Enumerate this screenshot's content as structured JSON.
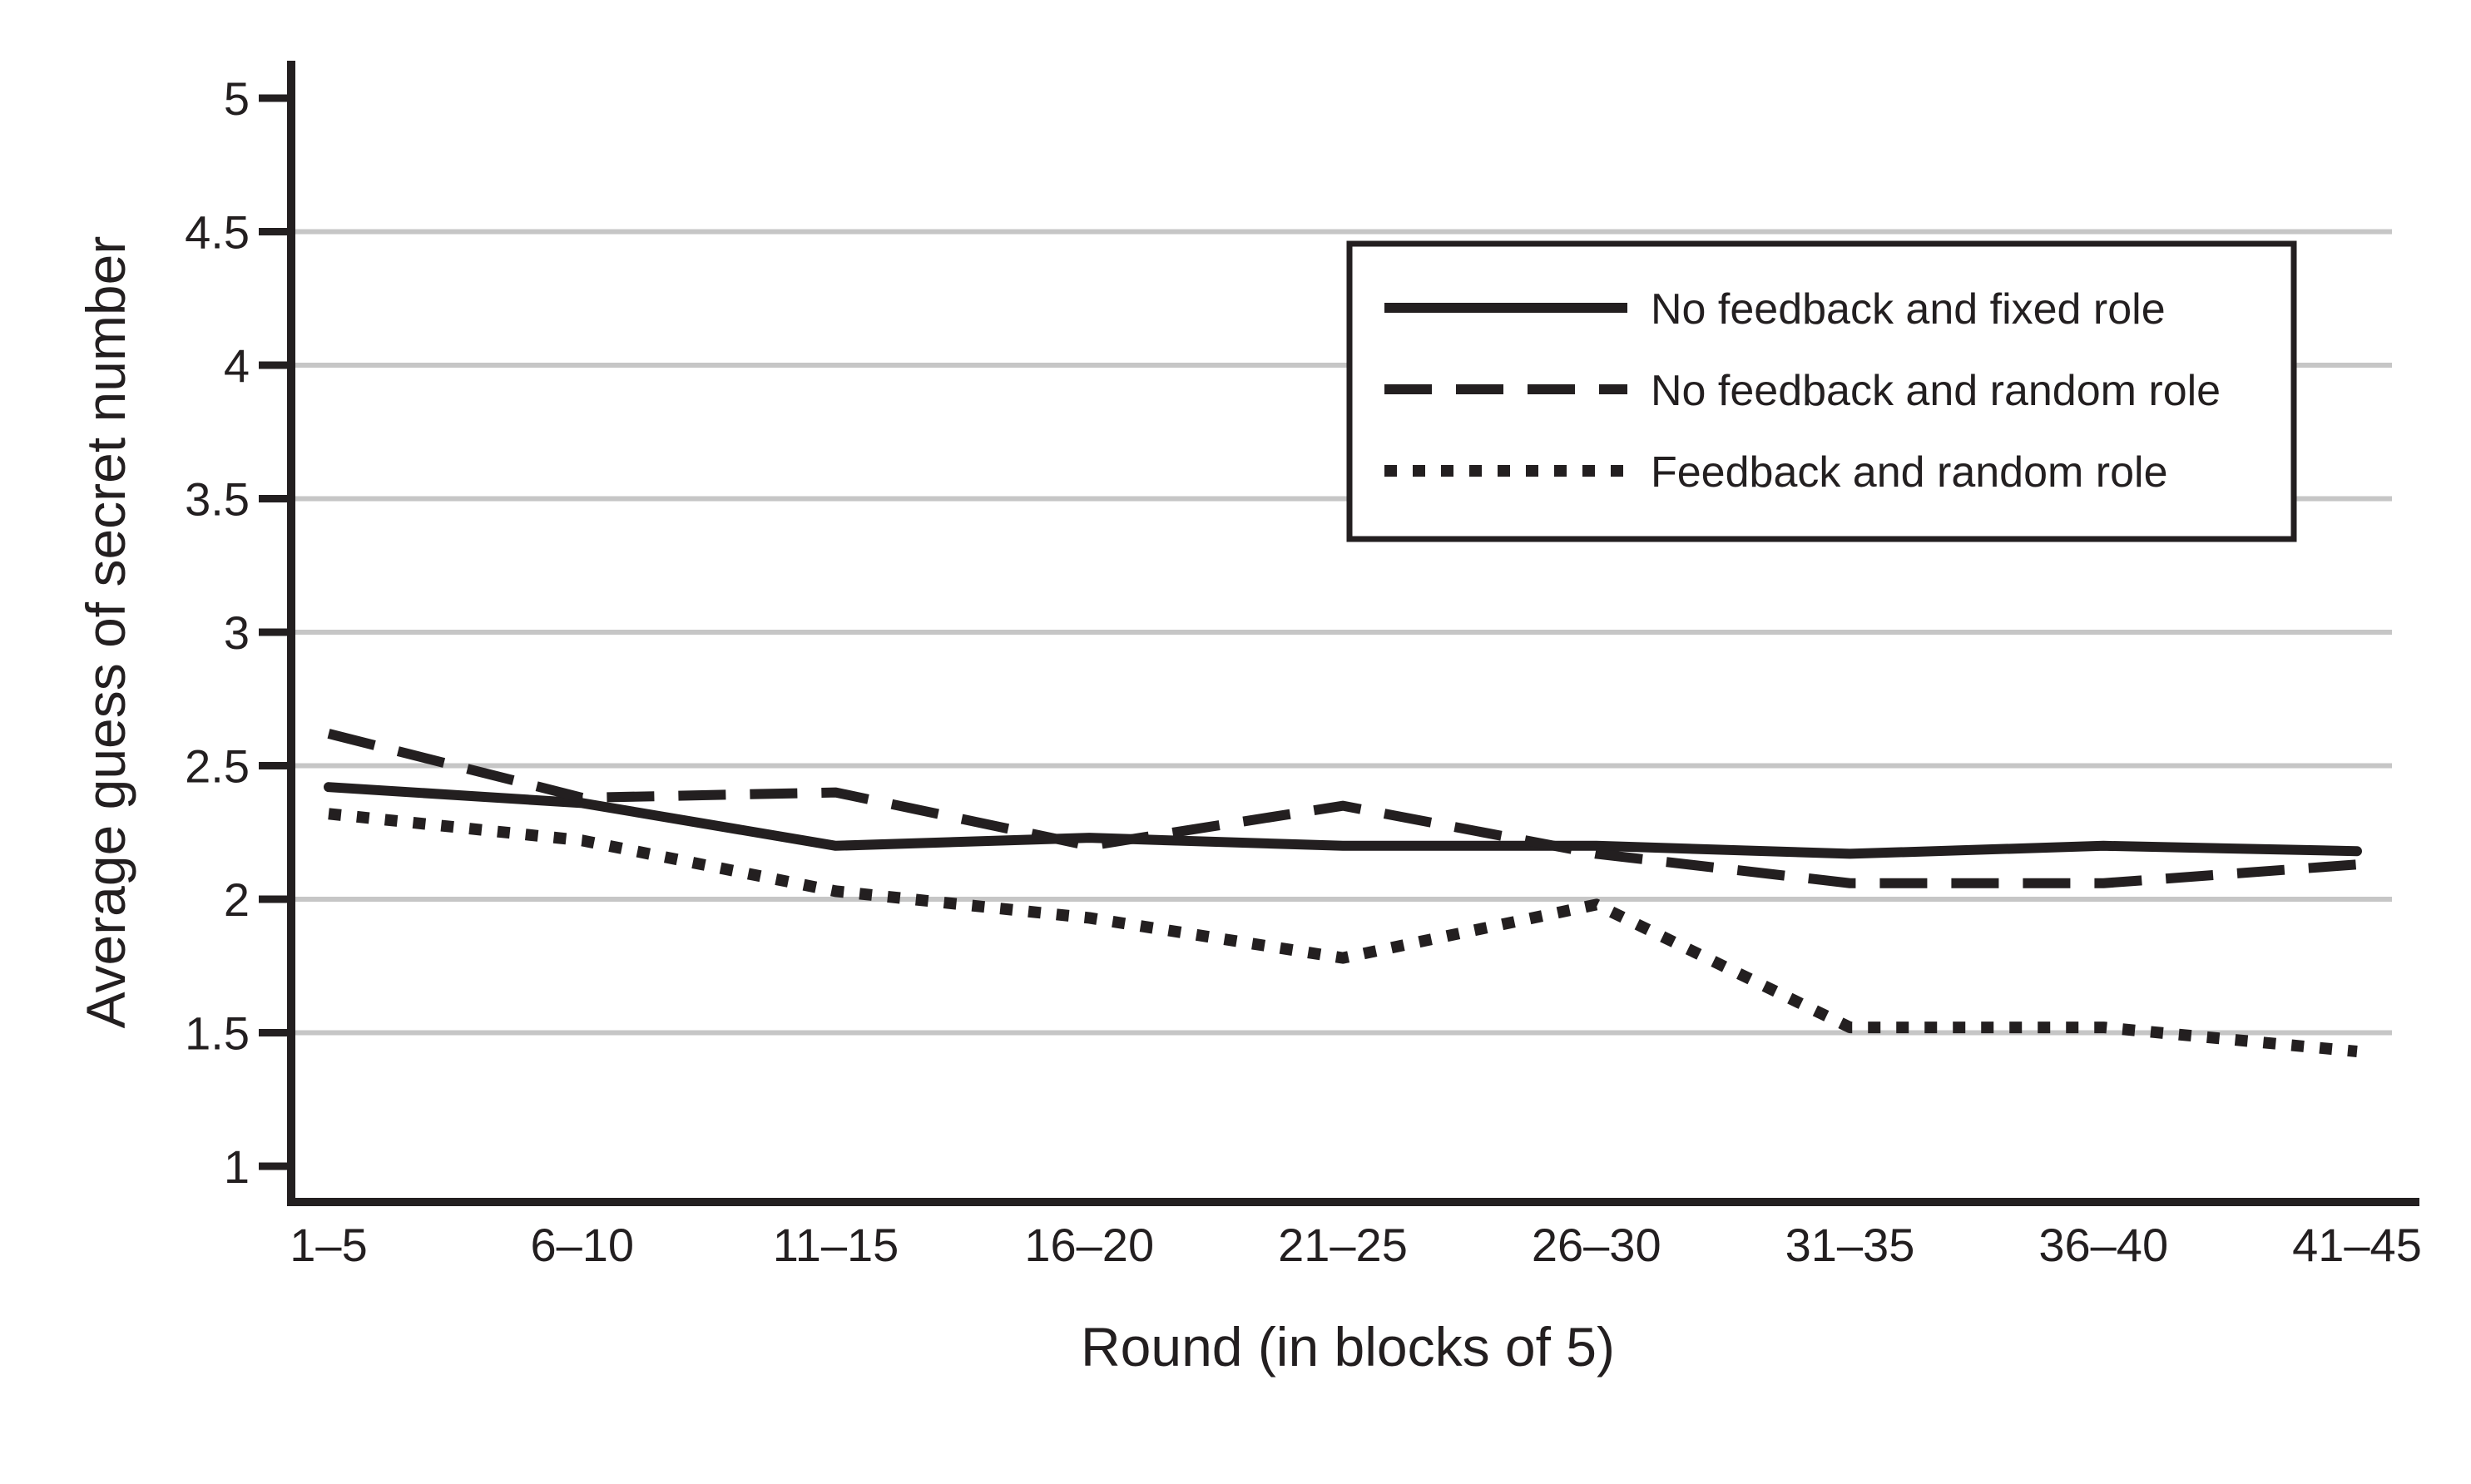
{
  "chart_data": {
    "type": "line",
    "title": "",
    "xlabel": "Round (in blocks of 5)",
    "ylabel": "Average guess of secret number",
    "categories": [
      "1–5",
      "6–10",
      "11–15",
      "16–20",
      "21–25",
      "26–30",
      "31–35",
      "36–40",
      "41–45"
    ],
    "series": [
      {
        "name": "No feedback and fixed role",
        "line_style": "solid",
        "values": [
          2.42,
          2.36,
          2.2,
          2.23,
          2.2,
          2.2,
          2.17,
          2.2,
          2.18
        ]
      },
      {
        "name": "No feedback and random role",
        "line_style": "long-dash",
        "values": [
          2.62,
          2.38,
          2.4,
          2.2,
          2.35,
          2.17,
          2.06,
          2.06,
          2.13
        ]
      },
      {
        "name": "Feedback and random role",
        "line_style": "dotted",
        "values": [
          2.32,
          2.22,
          2.03,
          1.93,
          1.78,
          1.98,
          1.52,
          1.52,
          1.43
        ]
      }
    ],
    "ylim": [
      1,
      5
    ],
    "yticks": [
      5,
      4.5,
      4,
      3.5,
      3,
      2.5,
      2,
      1.5,
      1
    ],
    "ytick_labels": [
      "5",
      "4.5",
      "4",
      "3.5",
      "3",
      "2.5",
      "2",
      "1.5",
      "1"
    ],
    "gridline_values": [
      4.5,
      4,
      3.5,
      3,
      2.5,
      2,
      1.5
    ],
    "grid": true,
    "legend_position": "top-right",
    "colors": {
      "line": "#231f20",
      "gridline": "#c6c6c6",
      "text": "#231f20",
      "background": "#ffffff"
    }
  }
}
